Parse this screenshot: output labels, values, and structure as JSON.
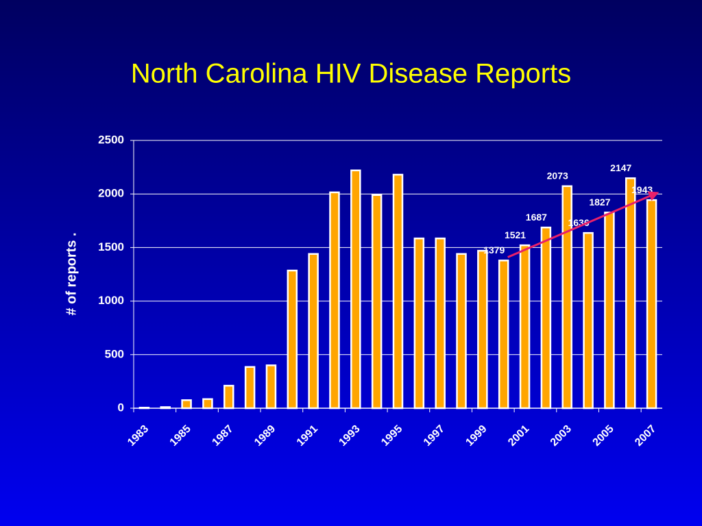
{
  "chart_data": {
    "type": "bar",
    "title": "North Carolina HIV Disease Reports",
    "y_label": "# of reports .",
    "categories": [
      "1983",
      null,
      "1985",
      null,
      "1987",
      null,
      "1989",
      null,
      "1991",
      null,
      "1993",
      null,
      "1995",
      null,
      "1997",
      null,
      "1999",
      null,
      "2001",
      null,
      "2003",
      null,
      "2005",
      null,
      "2007"
    ],
    "values": [
      5,
      10,
      75,
      85,
      210,
      385,
      400,
      1285,
      1440,
      2015,
      2220,
      1990,
      2180,
      1585,
      1585,
      1440,
      1470,
      1379,
      1521,
      1687,
      2073,
      1636,
      1827,
      2147,
      1943
    ],
    "value_labels": [
      null,
      null,
      null,
      null,
      null,
      null,
      null,
      null,
      null,
      null,
      null,
      null,
      null,
      null,
      null,
      null,
      null,
      "1379",
      "1521",
      "1687",
      "2073",
      "1636",
      "1827",
      "2147",
      "1943"
    ],
    "color": "#ffa500",
    "trend_line": {
      "x": [
        2000,
        2007
      ],
      "values": [
        1410,
        2010
      ],
      "color": "#e8206a"
    },
    "ylim": [
      0,
      2500
    ],
    "yticks": [
      0,
      500,
      1000,
      1500,
      2000,
      2500
    ],
    "grid": true
  }
}
